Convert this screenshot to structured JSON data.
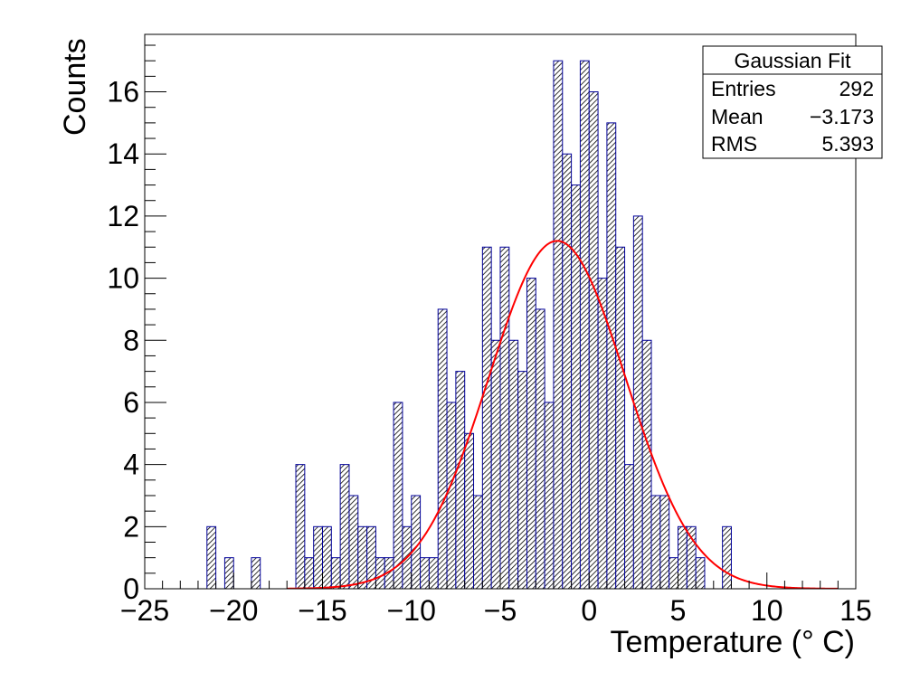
{
  "chart_data": {
    "type": "bar",
    "subtype": "histogram",
    "title": "",
    "xlabel": "Temperature (° C)",
    "ylabel": "Counts",
    "xlim": [
      -25,
      15
    ],
    "ylim": [
      0,
      17.85
    ],
    "bin_width": 0.5,
    "x_ticks": [
      -25,
      -20,
      -15,
      -10,
      -5,
      0,
      5,
      10,
      15
    ],
    "x_tick_labels": [
      "−25",
      "−20",
      "−15",
      "−10",
      "−5",
      "0",
      "5",
      "10",
      "15"
    ],
    "y_ticks": [
      0,
      2,
      4,
      6,
      8,
      10,
      12,
      14,
      16
    ],
    "y_tick_labels": [
      "0",
      "2",
      "4",
      "6",
      "8",
      "10",
      "12",
      "14",
      "16"
    ],
    "grid": false,
    "legend": "none",
    "bins": [
      {
        "x": -21.5,
        "count": 2
      },
      {
        "x": -21.0,
        "count": 0
      },
      {
        "x": -20.5,
        "count": 1
      },
      {
        "x": -20.0,
        "count": 0
      },
      {
        "x": -19.5,
        "count": 0
      },
      {
        "x": -19.0,
        "count": 1
      },
      {
        "x": -18.5,
        "count": 0
      },
      {
        "x": -18.0,
        "count": 0
      },
      {
        "x": -17.5,
        "count": 0
      },
      {
        "x": -17.0,
        "count": 0
      },
      {
        "x": -16.5,
        "count": 4
      },
      {
        "x": -16.0,
        "count": 1
      },
      {
        "x": -15.5,
        "count": 2
      },
      {
        "x": -15.0,
        "count": 2
      },
      {
        "x": -14.5,
        "count": 1
      },
      {
        "x": -14.0,
        "count": 4
      },
      {
        "x": -13.5,
        "count": 3
      },
      {
        "x": -13.0,
        "count": 2
      },
      {
        "x": -12.5,
        "count": 2
      },
      {
        "x": -12.0,
        "count": 1
      },
      {
        "x": -11.5,
        "count": 1
      },
      {
        "x": -11.0,
        "count": 6
      },
      {
        "x": -10.5,
        "count": 2
      },
      {
        "x": -10.0,
        "count": 3
      },
      {
        "x": -9.5,
        "count": 1
      },
      {
        "x": -9.0,
        "count": 1
      },
      {
        "x": -8.5,
        "count": 9
      },
      {
        "x": -8.0,
        "count": 6
      },
      {
        "x": -7.5,
        "count": 7
      },
      {
        "x": -7.0,
        "count": 5
      },
      {
        "x": -6.5,
        "count": 3
      },
      {
        "x": -6.0,
        "count": 11
      },
      {
        "x": -5.5,
        "count": 8
      },
      {
        "x": -5.0,
        "count": 11
      },
      {
        "x": -4.5,
        "count": 8
      },
      {
        "x": -4.0,
        "count": 7
      },
      {
        "x": -3.5,
        "count": 10
      },
      {
        "x": -3.0,
        "count": 9
      },
      {
        "x": -2.5,
        "count": 6
      },
      {
        "x": -2.0,
        "count": 17
      },
      {
        "x": -1.5,
        "count": 14
      },
      {
        "x": -1.0,
        "count": 13
      },
      {
        "x": -0.5,
        "count": 17
      },
      {
        "x": 0.0,
        "count": 16
      },
      {
        "x": 0.5,
        "count": 10
      },
      {
        "x": 1.0,
        "count": 15
      },
      {
        "x": 1.5,
        "count": 11
      },
      {
        "x": 2.0,
        "count": 4
      },
      {
        "x": 2.5,
        "count": 12
      },
      {
        "x": 3.0,
        "count": 8
      },
      {
        "x": 3.5,
        "count": 3
      },
      {
        "x": 4.0,
        "count": 3
      },
      {
        "x": 4.5,
        "count": 1
      },
      {
        "x": 5.0,
        "count": 2
      },
      {
        "x": 5.5,
        "count": 2
      },
      {
        "x": 6.0,
        "count": 1
      },
      {
        "x": 6.5,
        "count": 0
      },
      {
        "x": 7.0,
        "count": 0
      },
      {
        "x": 7.5,
        "count": 2
      }
    ],
    "fit_curve": {
      "type": "gaussian",
      "amplitude": 11.2,
      "mean": -1.8,
      "sigma": 3.85,
      "x_range": [
        -17,
        14
      ],
      "color": "#ff0000"
    },
    "bar_fill_color": "#ffffff",
    "bar_hatch_color": "#000000",
    "bar_edge_color": "#000099",
    "stats_box": {
      "title": "Gaussian Fit",
      "rows": [
        {
          "label": "Entries",
          "value": "292"
        },
        {
          "label": "Mean",
          "value": "−3.173"
        },
        {
          "label": "RMS",
          "value": "5.393"
        }
      ],
      "position": "top-right"
    }
  }
}
